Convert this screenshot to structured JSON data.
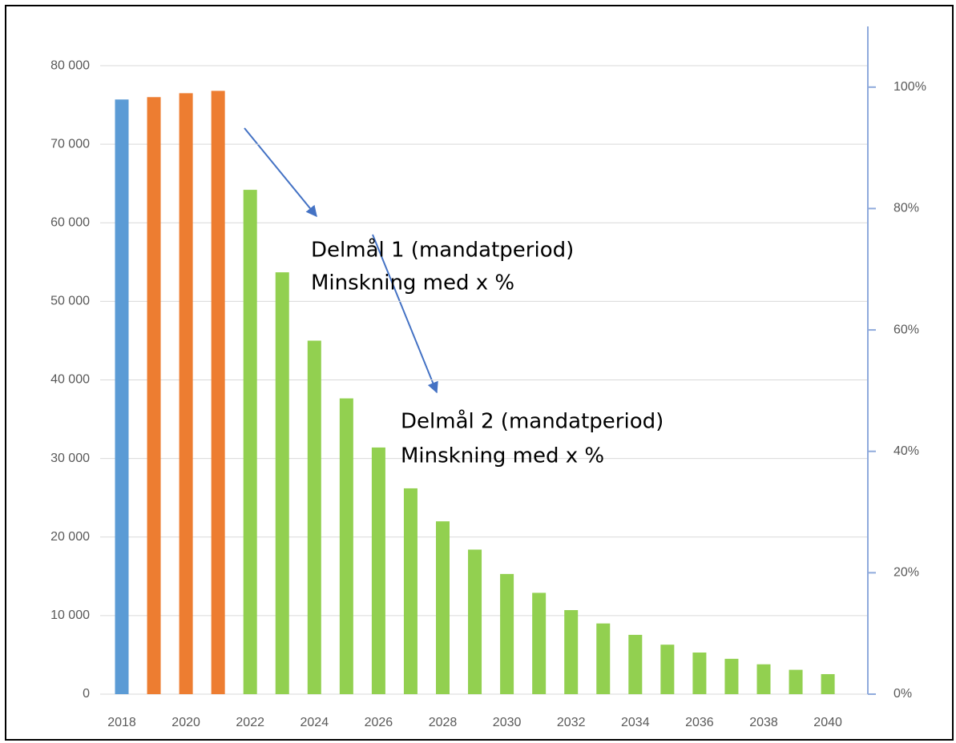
{
  "chart_data": {
    "type": "bar",
    "categories": [
      "2018",
      null,
      "2020",
      null,
      "2022",
      null,
      "2024",
      null,
      "2026",
      null,
      "2028",
      null,
      "2030",
      null,
      "2032",
      null,
      "2034",
      null,
      "2036",
      null,
      "2038",
      null,
      "2040"
    ],
    "values": [
      75700,
      76000,
      76500,
      76800,
      64200,
      53700,
      45000,
      37650,
      31400,
      26200,
      22000,
      18400,
      15300,
      12900,
      10700,
      9000,
      7550,
      6300,
      5300,
      4500,
      3800,
      3100,
      2550
    ],
    "colors": [
      "#5b9bd5",
      "#ed7d31",
      "#ed7d31",
      "#ed7d31",
      "#92d050",
      "#92d050",
      "#92d050",
      "#92d050",
      "#92d050",
      "#92d050",
      "#92d050",
      "#92d050",
      "#92d050",
      "#92d050",
      "#92d050",
      "#92d050",
      "#92d050",
      "#92d050",
      "#92d050",
      "#92d050",
      "#92d050",
      "#92d050",
      "#92d050"
    ],
    "ylim": [
      0,
      85000
    ],
    "yticks": [
      0,
      {
        "value": 10000,
        "label": "10 000"
      },
      {
        "value": 20000,
        "label": "20 000"
      },
      {
        "value": 30000,
        "label": "30 000"
      },
      {
        "value": 40000,
        "label": "40 000"
      },
      {
        "value": 50000,
        "label": "50 000"
      },
      {
        "value": 60000,
        "label": "60 000"
      },
      {
        "value": 70000,
        "label": "70 000"
      },
      {
        "value": 80000,
        "label": "80 000"
      }
    ],
    "y2lim": [
      0,
      110
    ],
    "y2ticks": [
      {
        "value": 0,
        "label": "0%"
      },
      {
        "value": 20,
        "label": "20%"
      },
      {
        "value": 40,
        "label": "40%"
      },
      {
        "value": 60,
        "label": "60%"
      },
      {
        "value": 80,
        "label": "80%"
      },
      {
        "value": 100,
        "label": "100%"
      }
    ],
    "grid": true,
    "annotations": [
      "Delmål 1 (mandatperiod)",
      "Minskning med x %",
      "Delmål 2 (mandatperiod)",
      "Minskning med x %"
    ]
  }
}
